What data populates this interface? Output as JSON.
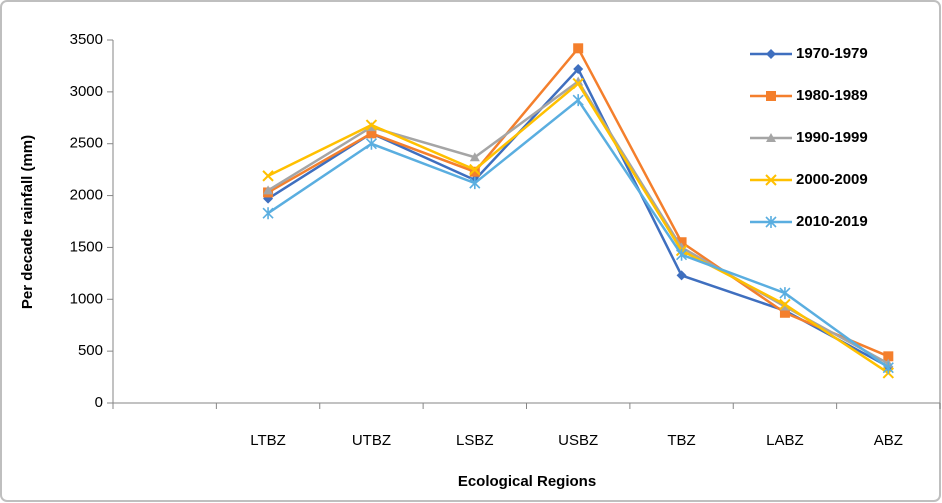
{
  "chart_data": {
    "type": "line",
    "x_label": "Ecological Regions",
    "y_label": "Per decade rainfall (mm)",
    "categories": [
      null,
      "LTBZ",
      "UTBZ",
      "LSBZ",
      "USBZ",
      "TBZ",
      "LABZ",
      "ABZ"
    ],
    "series": [
      {
        "name": "1970-1979",
        "color": "#3f6fbf",
        "marker": "diamond",
        "values": [
          null,
          1970,
          2600,
          2150,
          3220,
          1230,
          890,
          350
        ]
      },
      {
        "name": "1980-1989",
        "color": "#f47f2c",
        "marker": "square",
        "values": [
          null,
          2030,
          2600,
          2230,
          3420,
          1550,
          870,
          450
        ]
      },
      {
        "name": "1990-1999",
        "color": "#a5a5a5",
        "marker": "triangle",
        "values": [
          null,
          2050,
          2660,
          2370,
          3100,
          1500,
          930,
          380
        ]
      },
      {
        "name": "2000-2009",
        "color": "#ffc000",
        "marker": "x",
        "values": [
          null,
          2190,
          2680,
          2250,
          3080,
          1470,
          950,
          290
        ]
      },
      {
        "name": "2010-2019",
        "color": "#5aaee0",
        "marker": "star",
        "values": [
          null,
          1830,
          2500,
          2120,
          2920,
          1430,
          1060,
          340
        ]
      }
    ],
    "ylim": [
      0,
      3500
    ],
    "yticks": [
      0,
      500,
      1000,
      1500,
      2000,
      2500,
      3000,
      3500
    ],
    "grid": false,
    "legend": "top-right"
  }
}
